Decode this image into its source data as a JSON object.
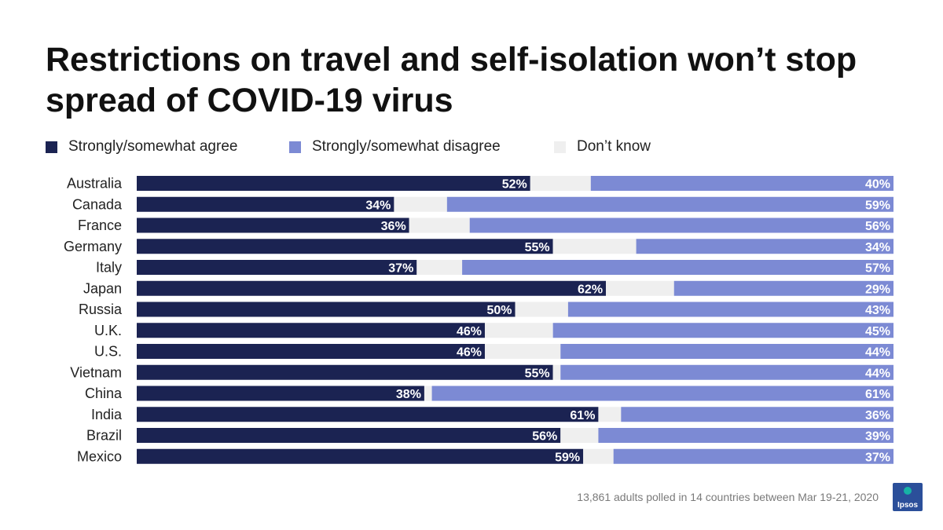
{
  "colors": {
    "agree": "#1b2352",
    "disagree": "#7c8ad4",
    "dont_know": "#efefef",
    "logo": "#2b4f9a",
    "logo_accent": "#17b3a6"
  },
  "footnote": "13,861 adults polled in 14 countries between Mar 19-21, 2020",
  "logo": {
    "text": "Ipsos"
  },
  "chart_data": {
    "type": "bar",
    "orientation": "horizontal",
    "stacked": true,
    "title": "Restrictions on travel and self-isolation won’t stop spread of COVID-19 virus",
    "legend_position": "top-left",
    "grid": false,
    "xlim": [
      0,
      100
    ],
    "categories": [
      "Australia",
      "Canada",
      "France",
      "Germany",
      "Italy",
      "Japan",
      "Russia",
      "U.K.",
      "U.S.",
      "Vietnam",
      "China",
      "India",
      "Brazil",
      "Mexico"
    ],
    "series": [
      {
        "name": "Strongly/somewhat agree",
        "values": [
          52,
          34,
          36,
          55,
          37,
          62,
          50,
          46,
          46,
          55,
          38,
          61,
          56,
          59
        ]
      },
      {
        "name": "Don’t know",
        "values": [
          8,
          7,
          8,
          11,
          6,
          9,
          7,
          9,
          10,
          1,
          1,
          3,
          5,
          4
        ]
      },
      {
        "name": "Strongly/somewhat disagree",
        "values": [
          40,
          59,
          56,
          34,
          57,
          29,
          43,
          45,
          44,
          44,
          61,
          36,
          39,
          37
        ]
      }
    ],
    "labels": {
      "agree": [
        "52%",
        "34%",
        "36%",
        "55%",
        "37%",
        "62%",
        "50%",
        "46%",
        "46%",
        "55%",
        "38%",
        "61%",
        "56%",
        "59%"
      ],
      "disagree": [
        "40%",
        "59%",
        "56%",
        "34%",
        "57%",
        "29%",
        "43%",
        "45%",
        "44%",
        "44%",
        "61%",
        "36%",
        "39%",
        "37%"
      ]
    }
  }
}
